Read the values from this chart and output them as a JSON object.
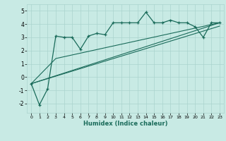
{
  "xlabel": "Humidex (Indice chaleur)",
  "background_color": "#c8eae4",
  "grid_color": "#aad4ce",
  "line_color": "#1a6b5a",
  "xlim": [
    -0.5,
    23.5
  ],
  "ylim": [
    -2.7,
    5.5
  ],
  "xticks": [
    0,
    1,
    2,
    3,
    4,
    5,
    6,
    7,
    8,
    9,
    10,
    11,
    12,
    13,
    14,
    15,
    16,
    17,
    18,
    19,
    20,
    21,
    22,
    23
  ],
  "yticks": [
    -2,
    -1,
    0,
    1,
    2,
    3,
    4,
    5
  ],
  "marker_line_x": [
    0,
    1,
    2,
    3,
    4,
    5,
    6,
    7,
    8,
    9,
    10,
    11,
    12,
    13,
    14,
    15,
    16,
    17,
    18,
    19,
    20,
    21,
    22,
    23
  ],
  "marker_line_y": [
    -0.5,
    -2.1,
    -0.9,
    3.1,
    3.0,
    3.0,
    2.1,
    3.1,
    3.3,
    3.2,
    4.1,
    4.1,
    4.1,
    4.1,
    4.9,
    4.1,
    4.1,
    4.3,
    4.1,
    4.1,
    3.8,
    3.0,
    4.1,
    4.1
  ],
  "line1_x": [
    0,
    23
  ],
  "line1_y": [
    -0.5,
    3.85
  ],
  "line2_x": [
    0,
    23
  ],
  "line2_y": [
    -0.5,
    4.1
  ],
  "line3_x": [
    0,
    3,
    23
  ],
  "line3_y": [
    -0.5,
    1.4,
    4.1
  ]
}
